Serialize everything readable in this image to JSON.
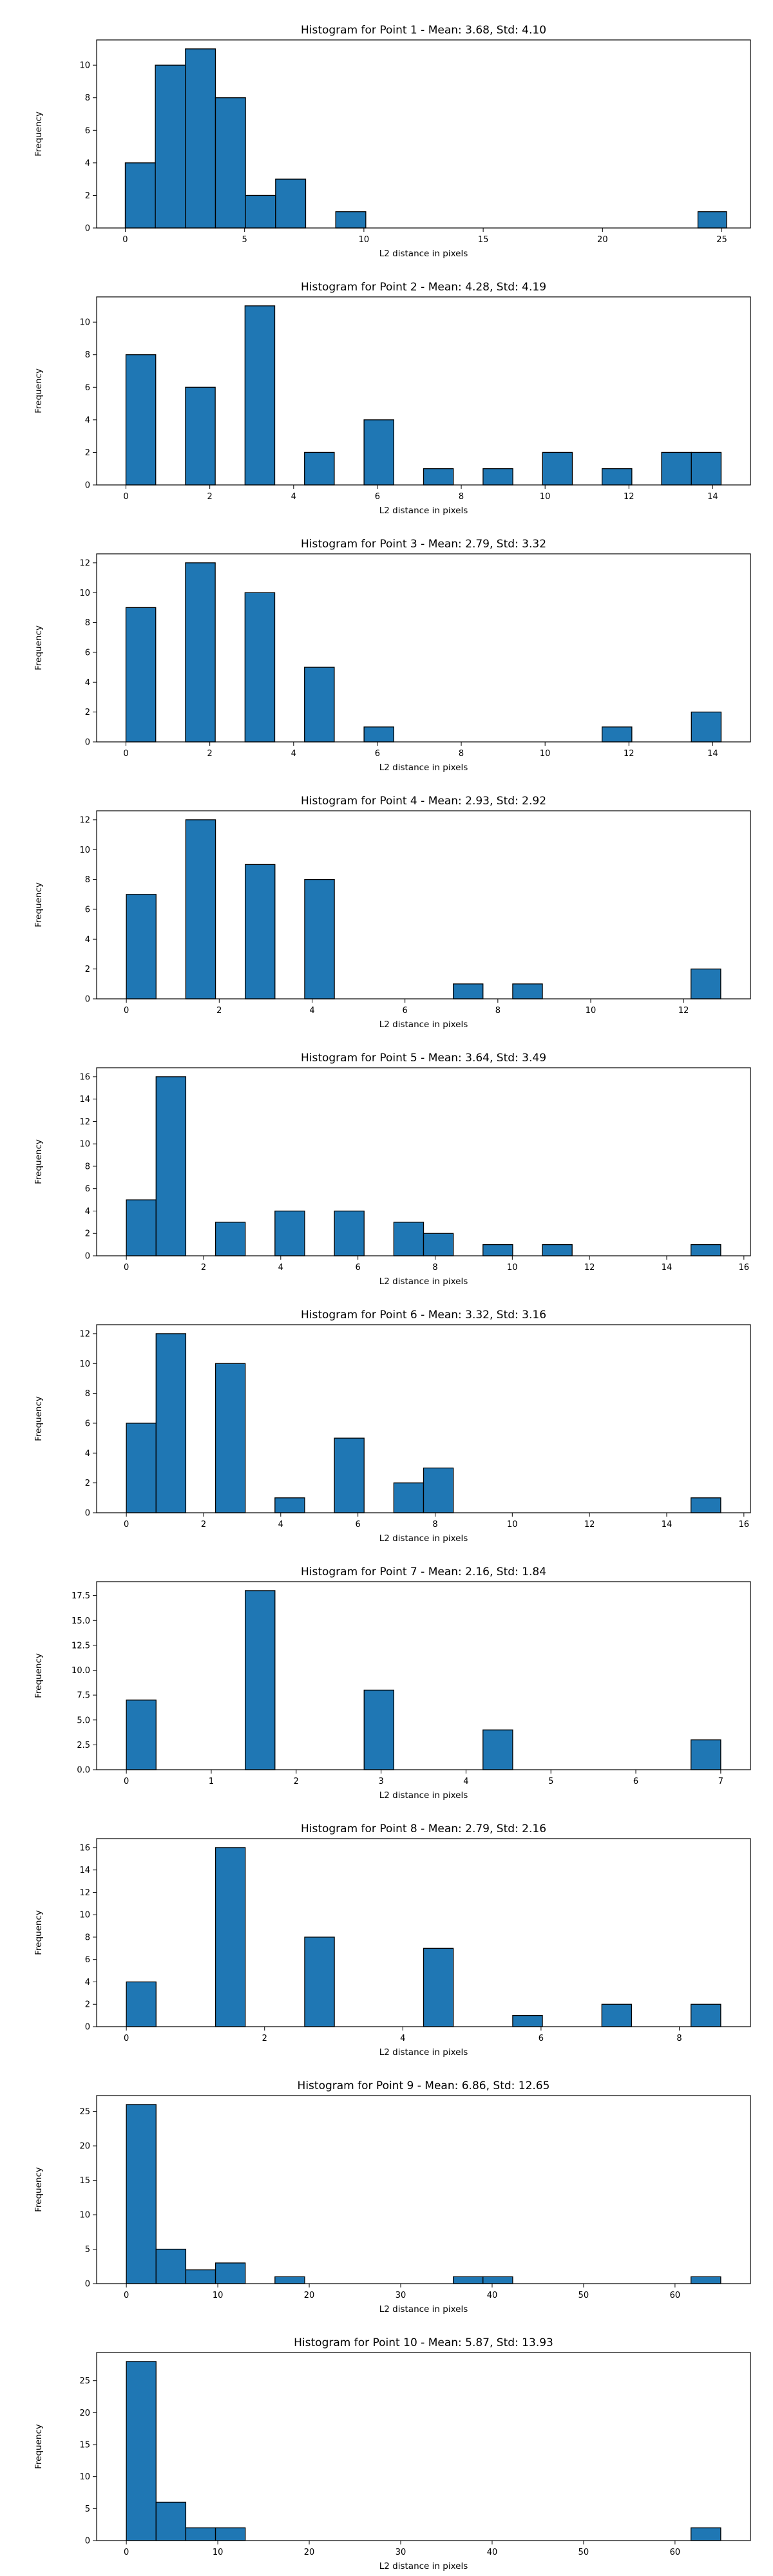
{
  "chart_data": [
    {
      "type": "bar",
      "title": "Histogram for Point 1 - Mean: 3.68, Std: 4.10",
      "xlabel": "L2 distance in pixels",
      "ylabel": "Frequency",
      "xlim": [
        -1.2,
        26.2
      ],
      "ylim": [
        0,
        11.55
      ],
      "xticks": [
        0,
        5,
        10,
        15,
        20,
        25
      ],
      "yticks": [
        0,
        2,
        4,
        6,
        8,
        10
      ],
      "bins": [
        {
          "x0": 0,
          "x1": 1.26,
          "count": 4
        },
        {
          "x0": 1.26,
          "x1": 2.52,
          "count": 10
        },
        {
          "x0": 2.52,
          "x1": 3.78,
          "count": 11
        },
        {
          "x0": 3.78,
          "x1": 5.04,
          "count": 8
        },
        {
          "x0": 5.04,
          "x1": 6.3,
          "count": 2
        },
        {
          "x0": 6.3,
          "x1": 7.56,
          "count": 3
        },
        {
          "x0": 8.82,
          "x1": 10.08,
          "count": 1
        },
        {
          "x0": 24.0,
          "x1": 25.2,
          "count": 1
        }
      ],
      "color": "#1f77b4"
    },
    {
      "type": "bar",
      "title": "Histogram for Point 2 - Mean: 4.28, Std: 4.19",
      "xlabel": "L2 distance in pixels",
      "ylabel": "Frequency",
      "xlim": [
        -0.7,
        14.9
      ],
      "ylim": [
        0,
        11.55
      ],
      "xticks": [
        0,
        2,
        4,
        6,
        8,
        10,
        12,
        14
      ],
      "yticks": [
        0,
        2,
        4,
        6,
        8,
        10
      ],
      "bins": [
        {
          "x0": 0,
          "x1": 0.71,
          "count": 8
        },
        {
          "x0": 1.42,
          "x1": 2.13,
          "count": 6
        },
        {
          "x0": 2.84,
          "x1": 3.55,
          "count": 11
        },
        {
          "x0": 4.26,
          "x1": 4.97,
          "count": 2
        },
        {
          "x0": 5.68,
          "x1": 6.39,
          "count": 4
        },
        {
          "x0": 7.1,
          "x1": 7.81,
          "count": 1
        },
        {
          "x0": 8.52,
          "x1": 9.23,
          "count": 1
        },
        {
          "x0": 9.94,
          "x1": 10.65,
          "count": 2
        },
        {
          "x0": 11.36,
          "x1": 12.07,
          "count": 1
        },
        {
          "x0": 12.78,
          "x1": 13.49,
          "count": 2
        },
        {
          "x0": 13.49,
          "x1": 14.2,
          "count": 2
        }
      ],
      "color": "#1f77b4"
    },
    {
      "type": "bar",
      "title": "Histogram for Point 3 - Mean: 2.79, Std: 3.32",
      "xlabel": "L2 distance in pixels",
      "ylabel": "Frequency",
      "xlim": [
        -0.7,
        14.9
      ],
      "ylim": [
        0,
        12.6
      ],
      "xticks": [
        0,
        2,
        4,
        6,
        8,
        10,
        12,
        14
      ],
      "yticks": [
        0,
        2,
        4,
        6,
        8,
        10,
        12
      ],
      "bins": [
        {
          "x0": 0,
          "x1": 0.71,
          "count": 9
        },
        {
          "x0": 1.42,
          "x1": 2.13,
          "count": 12
        },
        {
          "x0": 2.84,
          "x1": 3.55,
          "count": 10
        },
        {
          "x0": 4.26,
          "x1": 4.97,
          "count": 5
        },
        {
          "x0": 5.68,
          "x1": 6.39,
          "count": 1
        },
        {
          "x0": 11.36,
          "x1": 12.07,
          "count": 1
        },
        {
          "x0": 13.49,
          "x1": 14.2,
          "count": 2
        }
      ],
      "color": "#1f77b4"
    },
    {
      "type": "bar",
      "title": "Histogram for Point 4 - Mean: 2.93, Std: 2.92",
      "xlabel": "L2 distance in pixels",
      "ylabel": "Frequency",
      "xlim": [
        -0.64,
        13.44
      ],
      "ylim": [
        0,
        12.6
      ],
      "xticks": [
        0,
        2,
        4,
        6,
        8,
        10,
        12
      ],
      "yticks": [
        0,
        2,
        4,
        6,
        8,
        10,
        12
      ],
      "bins": [
        {
          "x0": 0,
          "x1": 0.64,
          "count": 7
        },
        {
          "x0": 1.28,
          "x1": 1.92,
          "count": 12
        },
        {
          "x0": 2.56,
          "x1": 3.2,
          "count": 9
        },
        {
          "x0": 3.84,
          "x1": 4.48,
          "count": 8
        },
        {
          "x0": 7.04,
          "x1": 7.68,
          "count": 1
        },
        {
          "x0": 8.32,
          "x1": 8.96,
          "count": 1
        },
        {
          "x0": 12.16,
          "x1": 12.8,
          "count": 2
        }
      ],
      "color": "#1f77b4"
    },
    {
      "type": "bar",
      "title": "Histogram for Point 5 - Mean: 3.64, Std: 3.49",
      "xlabel": "L2 distance in pixels",
      "ylabel": "Frequency",
      "xlim": [
        -0.77,
        16.17
      ],
      "ylim": [
        0,
        16.8
      ],
      "xticks": [
        0,
        2,
        4,
        6,
        8,
        10,
        12,
        14,
        16
      ],
      "yticks": [
        0,
        2,
        4,
        6,
        8,
        10,
        12,
        14,
        16
      ],
      "bins": [
        {
          "x0": 0,
          "x1": 0.77,
          "count": 5
        },
        {
          "x0": 0.77,
          "x1": 1.54,
          "count": 16
        },
        {
          "x0": 2.31,
          "x1": 3.08,
          "count": 3
        },
        {
          "x0": 3.85,
          "x1": 4.62,
          "count": 4
        },
        {
          "x0": 5.39,
          "x1": 6.16,
          "count": 4
        },
        {
          "x0": 6.93,
          "x1": 7.7,
          "count": 3
        },
        {
          "x0": 7.7,
          "x1": 8.47,
          "count": 2
        },
        {
          "x0": 9.24,
          "x1": 10.01,
          "count": 1
        },
        {
          "x0": 10.78,
          "x1": 11.55,
          "count": 1
        },
        {
          "x0": 14.63,
          "x1": 15.4,
          "count": 1
        }
      ],
      "color": "#1f77b4"
    },
    {
      "type": "bar",
      "title": "Histogram for Point 6 - Mean: 3.32, Std: 3.16",
      "xlabel": "L2 distance in pixels",
      "ylabel": "Frequency",
      "xlim": [
        -0.77,
        16.17
      ],
      "ylim": [
        0,
        12.6
      ],
      "xticks": [
        0,
        2,
        4,
        6,
        8,
        10,
        12,
        14,
        16
      ],
      "yticks": [
        0,
        2,
        4,
        6,
        8,
        10,
        12
      ],
      "bins": [
        {
          "x0": 0,
          "x1": 0.77,
          "count": 6
        },
        {
          "x0": 0.77,
          "x1": 1.54,
          "count": 12
        },
        {
          "x0": 2.31,
          "x1": 3.08,
          "count": 10
        },
        {
          "x0": 3.85,
          "x1": 4.62,
          "count": 1
        },
        {
          "x0": 5.39,
          "x1": 6.16,
          "count": 5
        },
        {
          "x0": 6.93,
          "x1": 7.7,
          "count": 2
        },
        {
          "x0": 7.7,
          "x1": 8.47,
          "count": 3
        },
        {
          "x0": 14.63,
          "x1": 15.4,
          "count": 1
        }
      ],
      "color": "#1f77b4"
    },
    {
      "type": "bar",
      "title": "Histogram for Point 7 - Mean: 2.16, Std: 1.84",
      "xlabel": "L2 distance in pixels",
      "ylabel": "Frequency",
      "xlim": [
        -0.35,
        7.35
      ],
      "ylim": [
        0,
        18.9
      ],
      "xticks": [
        0,
        1,
        2,
        3,
        4,
        5,
        6,
        7
      ],
      "yticks": [
        0.0,
        2.5,
        5.0,
        7.5,
        10.0,
        12.5,
        15.0,
        17.5
      ],
      "ytick_labels": [
        "0.0",
        "2.5",
        "5.0",
        "7.5",
        "10.0",
        "12.5",
        "15.0",
        "17.5"
      ],
      "bins": [
        {
          "x0": 0,
          "x1": 0.35,
          "count": 7
        },
        {
          "x0": 1.4,
          "x1": 1.75,
          "count": 18
        },
        {
          "x0": 2.8,
          "x1": 3.15,
          "count": 8
        },
        {
          "x0": 4.2,
          "x1": 4.55,
          "count": 4
        },
        {
          "x0": 6.65,
          "x1": 7.0,
          "count": 3
        }
      ],
      "color": "#1f77b4"
    },
    {
      "type": "bar",
      "title": "Histogram for Point 8 - Mean: 2.79, Std: 2.16",
      "xlabel": "L2 distance in pixels",
      "ylabel": "Frequency",
      "xlim": [
        -0.43,
        9.03
      ],
      "ylim": [
        0,
        16.8
      ],
      "xticks": [
        0,
        2,
        4,
        6,
        8
      ],
      "yticks": [
        0,
        2,
        4,
        6,
        8,
        10,
        12,
        14,
        16
      ],
      "bins": [
        {
          "x0": 0,
          "x1": 0.43,
          "count": 4
        },
        {
          "x0": 1.29,
          "x1": 1.72,
          "count": 16
        },
        {
          "x0": 2.58,
          "x1": 3.01,
          "count": 8
        },
        {
          "x0": 4.3,
          "x1": 4.73,
          "count": 7
        },
        {
          "x0": 5.59,
          "x1": 6.02,
          "count": 1
        },
        {
          "x0": 6.88,
          "x1": 7.31,
          "count": 2
        },
        {
          "x0": 8.17,
          "x1": 8.6,
          "count": 2
        }
      ],
      "color": "#1f77b4"
    },
    {
      "type": "bar",
      "title": "Histogram for Point 9 - Mean: 6.86, Std: 12.65",
      "xlabel": "L2 distance in pixels",
      "ylabel": "Frequency",
      "xlim": [
        -3.25,
        68.25
      ],
      "ylim": [
        0,
        27.3
      ],
      "xticks": [
        0,
        10,
        20,
        30,
        40,
        50,
        60
      ],
      "yticks": [
        0,
        5,
        10,
        15,
        20,
        25
      ],
      "bins": [
        {
          "x0": 0,
          "x1": 3.25,
          "count": 26
        },
        {
          "x0": 3.25,
          "x1": 6.5,
          "count": 5
        },
        {
          "x0": 6.5,
          "x1": 9.75,
          "count": 2
        },
        {
          "x0": 9.75,
          "x1": 13.0,
          "count": 3
        },
        {
          "x0": 16.25,
          "x1": 19.5,
          "count": 1
        },
        {
          "x0": 35.75,
          "x1": 39.0,
          "count": 1
        },
        {
          "x0": 39.0,
          "x1": 42.25,
          "count": 1
        },
        {
          "x0": 61.75,
          "x1": 65.0,
          "count": 1
        }
      ],
      "color": "#1f77b4"
    },
    {
      "type": "bar",
      "title": "Histogram for Point 10 - Mean: 5.87, Std: 13.93",
      "xlabel": "L2 distance in pixels",
      "ylabel": "Frequency",
      "xlim": [
        -3.25,
        68.25
      ],
      "ylim": [
        0,
        29.4
      ],
      "xticks": [
        0,
        10,
        20,
        30,
        40,
        50,
        60
      ],
      "yticks": [
        0,
        5,
        10,
        15,
        20,
        25
      ],
      "bins": [
        {
          "x0": 0,
          "x1": 3.25,
          "count": 28
        },
        {
          "x0": 3.25,
          "x1": 6.5,
          "count": 6
        },
        {
          "x0": 6.5,
          "x1": 9.75,
          "count": 2
        },
        {
          "x0": 9.75,
          "x1": 13.0,
          "count": 2
        },
        {
          "x0": 61.75,
          "x1": 65.0,
          "count": 2
        }
      ],
      "color": "#1f77b4"
    }
  ]
}
